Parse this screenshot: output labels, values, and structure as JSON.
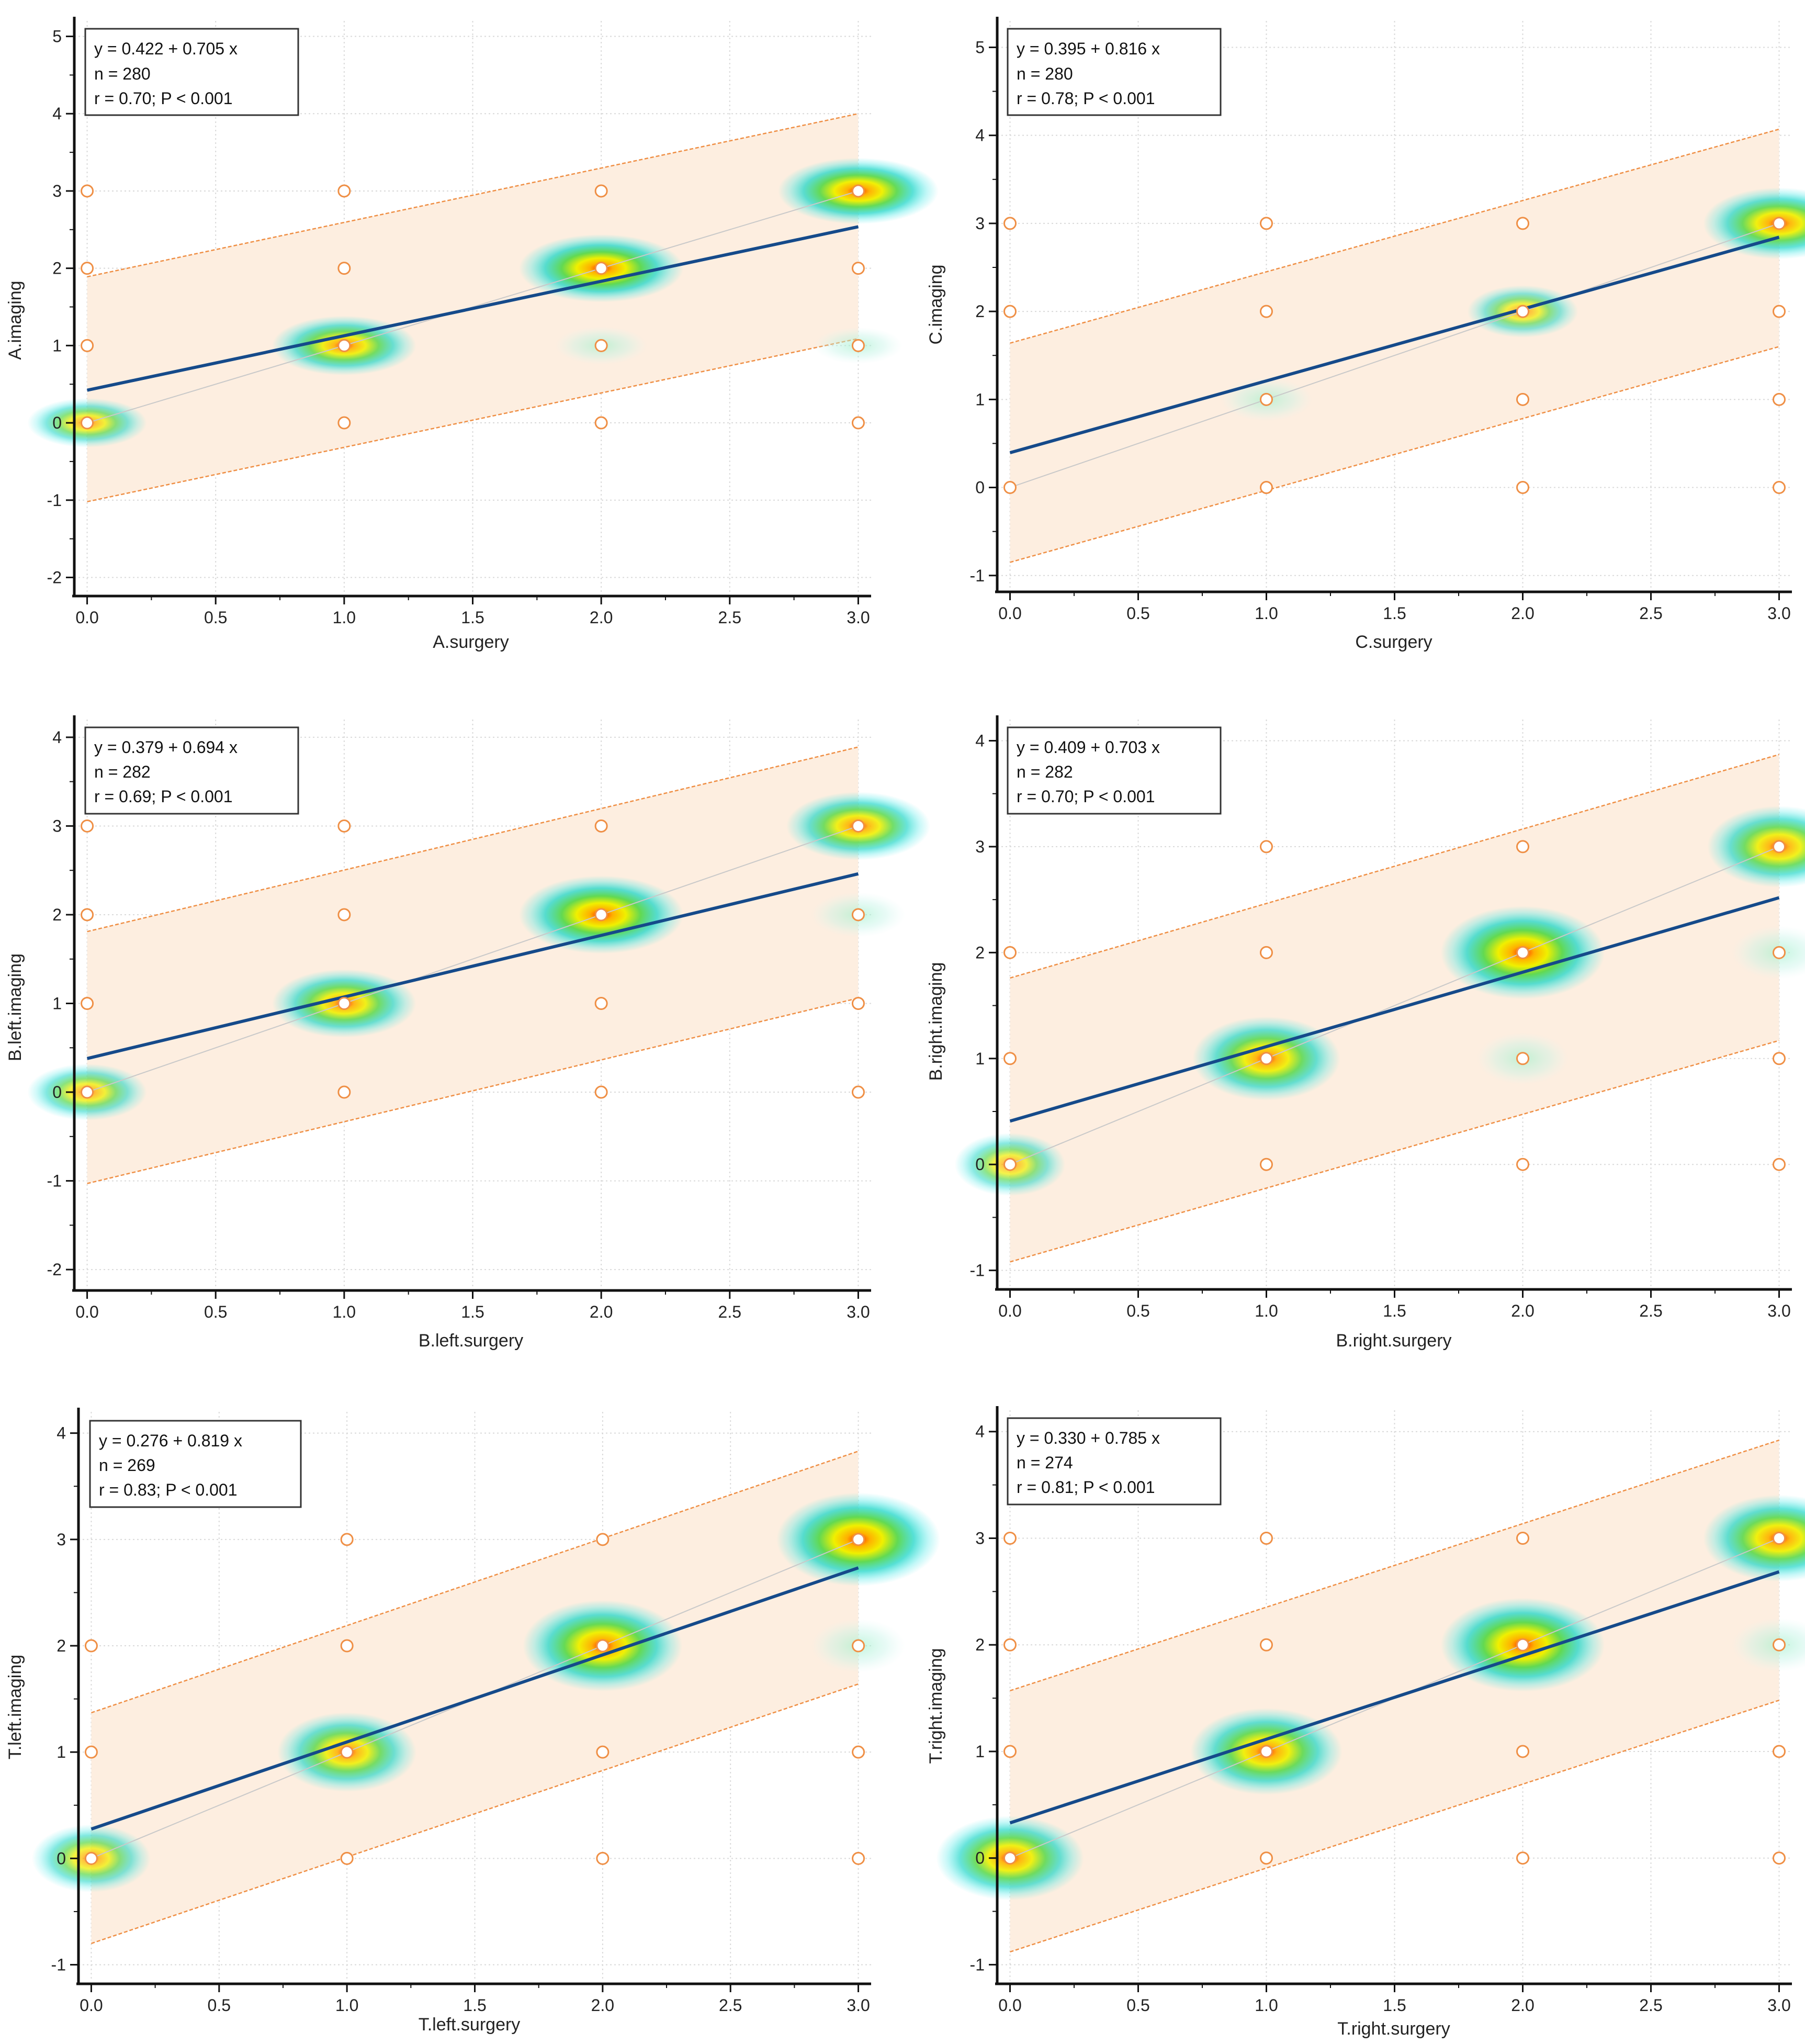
{
  "colors": {
    "band_fill": "#fdeee0",
    "band_edge": "#ef8f45",
    "regression": "#154a8a",
    "identity": "#c9c9c9",
    "grid": "#d9d9d9",
    "marker": "#ef8f45",
    "axis": "#111111"
  },
  "chart_data": [
    {
      "type": "scatter",
      "title": "",
      "xlabel": "A.surgery",
      "ylabel": "A.imaging",
      "xlim": [
        -0.05,
        3.05
      ],
      "ylim": [
        -2.2,
        5.2
      ],
      "xticks": [
        "0.0",
        "0.5",
        "1.0",
        "1.5",
        "2.0",
        "2.5",
        "3.0"
      ],
      "yticks": [
        "-2",
        "-1",
        "0",
        "1",
        "2",
        "3",
        "4",
        "5"
      ],
      "stats": [
        "y = 0.422 + 0.705 x",
        "n = 280",
        "r = 0.70; P < 0.001"
      ],
      "intercept": 0.422,
      "slope": 0.705,
      "band_lower": [
        -1.02,
        1.09
      ],
      "band_upper": [
        1.89,
        4.0
      ],
      "points": [
        [
          0,
          0
        ],
        [
          0,
          1
        ],
        [
          0,
          2
        ],
        [
          0,
          3
        ],
        [
          1,
          0
        ],
        [
          1,
          1
        ],
        [
          1,
          2
        ],
        [
          1,
          3
        ],
        [
          2,
          0
        ],
        [
          2,
          1
        ],
        [
          2,
          2
        ],
        [
          2,
          3
        ],
        [
          3,
          0
        ],
        [
          3,
          1
        ],
        [
          3,
          2
        ],
        [
          3,
          3
        ]
      ],
      "density": [
        [
          0,
          0,
          0.45
        ],
        [
          1,
          1,
          0.75
        ],
        [
          2,
          1,
          0.12
        ],
        [
          2,
          2,
          1.0
        ],
        [
          3,
          3,
          0.95
        ],
        [
          3,
          1,
          0.08
        ]
      ]
    },
    {
      "type": "scatter",
      "title": "",
      "xlabel": "C.surgery",
      "ylabel": "C.imaging",
      "xlim": [
        -0.05,
        3.05
      ],
      "ylim": [
        -1.15,
        5.3
      ],
      "xticks": [
        "0.0",
        "0.5",
        "1.0",
        "1.5",
        "2.0",
        "2.5",
        "3.0"
      ],
      "yticks": [
        "-1",
        "0",
        "1",
        "2",
        "3",
        "4",
        "5"
      ],
      "stats": [
        "y = 0.395 + 0.816 x",
        "n = 280",
        "r = 0.78; P < 0.001"
      ],
      "intercept": 0.395,
      "slope": 0.816,
      "band_lower": [
        -0.85,
        1.6
      ],
      "band_upper": [
        1.64,
        4.07
      ],
      "points": [
        [
          0,
          0
        ],
        [
          0,
          2
        ],
        [
          0,
          3
        ],
        [
          1,
          0
        ],
        [
          1,
          1
        ],
        [
          1,
          2
        ],
        [
          1,
          3
        ],
        [
          2,
          0
        ],
        [
          2,
          1
        ],
        [
          2,
          2
        ],
        [
          2,
          3
        ],
        [
          3,
          0
        ],
        [
          3,
          1
        ],
        [
          3,
          2
        ],
        [
          3,
          3
        ]
      ],
      "density": [
        [
          1,
          1,
          0.12
        ],
        [
          2,
          2,
          0.35
        ],
        [
          3,
          3,
          0.85
        ]
      ]
    },
    {
      "type": "scatter",
      "title": "",
      "xlabel": "B.left.surgery",
      "ylabel": "B.left.imaging",
      "xlim": [
        -0.05,
        3.05
      ],
      "ylim": [
        -2.2,
        4.2
      ],
      "xticks": [
        "0.0",
        "0.5",
        "1.0",
        "1.5",
        "2.0",
        "2.5",
        "3.0"
      ],
      "yticks": [
        "-2",
        "-1",
        "0",
        "1",
        "2",
        "3",
        "4"
      ],
      "stats": [
        "y = 0.379 + 0.694 x",
        "n = 282",
        "r = 0.69; P < 0.001"
      ],
      "intercept": 0.379,
      "slope": 0.694,
      "band_lower": [
        -1.03,
        1.06
      ],
      "band_upper": [
        1.81,
        3.89
      ],
      "points": [
        [
          0,
          0
        ],
        [
          0,
          1
        ],
        [
          0,
          2
        ],
        [
          0,
          3
        ],
        [
          1,
          0
        ],
        [
          1,
          1
        ],
        [
          1,
          2
        ],
        [
          1,
          3
        ],
        [
          2,
          0
        ],
        [
          2,
          1
        ],
        [
          2,
          2
        ],
        [
          2,
          3
        ],
        [
          3,
          0
        ],
        [
          3,
          1
        ],
        [
          3,
          2
        ],
        [
          3,
          3
        ]
      ],
      "density": [
        [
          0,
          0,
          0.45
        ],
        [
          1,
          1,
          0.75
        ],
        [
          2,
          2,
          1.0
        ],
        [
          3,
          3,
          0.75
        ],
        [
          3,
          2,
          0.15
        ]
      ]
    },
    {
      "type": "scatter",
      "title": "",
      "xlabel": "B.right.surgery",
      "ylabel": "B.right.imaging",
      "xlim": [
        -0.05,
        3.05
      ],
      "ylim": [
        -1.15,
        4.2
      ],
      "xticks": [
        "0.0",
        "0.5",
        "1.0",
        "1.5",
        "2.0",
        "2.5",
        "3.0"
      ],
      "yticks": [
        "-1",
        "0",
        "1",
        "2",
        "3",
        "4"
      ],
      "stats": [
        "y = 0.409 + 0.703 x",
        "n = 282",
        "r = 0.70; P < 0.001"
      ],
      "intercept": 0.409,
      "slope": 0.703,
      "band_lower": [
        -0.92,
        1.17
      ],
      "band_upper": [
        1.76,
        3.87
      ],
      "points": [
        [
          0,
          0
        ],
        [
          0,
          1
        ],
        [
          0,
          2
        ],
        [
          1,
          0
        ],
        [
          1,
          1
        ],
        [
          1,
          2
        ],
        [
          1,
          3
        ],
        [
          2,
          0
        ],
        [
          2,
          1
        ],
        [
          2,
          2
        ],
        [
          2,
          3
        ],
        [
          3,
          0
        ],
        [
          3,
          1
        ],
        [
          3,
          2
        ],
        [
          3,
          3
        ]
      ],
      "density": [
        [
          0,
          0,
          0.35
        ],
        [
          1,
          1,
          0.8
        ],
        [
          2,
          1,
          0.12
        ],
        [
          2,
          2,
          1.0
        ],
        [
          3,
          3,
          0.75
        ],
        [
          3,
          2,
          0.15
        ]
      ]
    },
    {
      "type": "scatter",
      "title": "",
      "xlabel": "T.left.surgery",
      "ylabel": "T.left.imaging",
      "xlim": [
        -0.05,
        3.05
      ],
      "ylim": [
        -1.15,
        4.2
      ],
      "xticks": [
        "0.0",
        "0.5",
        "1.0",
        "1.5",
        "2.0",
        "2.5",
        "3.0"
      ],
      "yticks": [
        "-1",
        "0",
        "1",
        "2",
        "3",
        "4"
      ],
      "stats": [
        "y = 0.276 + 0.819 x",
        "n = 269",
        "r = 0.83; P < 0.001"
      ],
      "intercept": 0.276,
      "slope": 0.819,
      "band_lower": [
        -0.8,
        1.64
      ],
      "band_upper": [
        1.37,
        3.83
      ],
      "points": [
        [
          0,
          0
        ],
        [
          0,
          1
        ],
        [
          0,
          2
        ],
        [
          1,
          0
        ],
        [
          1,
          1
        ],
        [
          1,
          2
        ],
        [
          1,
          3
        ],
        [
          2,
          0
        ],
        [
          2,
          1
        ],
        [
          2,
          2
        ],
        [
          2,
          3
        ],
        [
          3,
          0
        ],
        [
          3,
          1
        ],
        [
          3,
          2
        ],
        [
          3,
          3
        ]
      ],
      "density": [
        [
          0,
          0,
          0.45
        ],
        [
          1,
          1,
          0.7
        ],
        [
          2,
          2,
          0.95
        ],
        [
          3,
          3,
          1.0
        ],
        [
          3,
          2,
          0.15
        ]
      ]
    },
    {
      "type": "scatter",
      "title": "",
      "xlabel": "T.right.surgery",
      "ylabel": "T.right.imaging",
      "xlim": [
        -0.05,
        3.05
      ],
      "ylim": [
        -1.15,
        4.2
      ],
      "xticks": [
        "0.0",
        "0.5",
        "1.0",
        "1.5",
        "2.0",
        "2.5",
        "3.0"
      ],
      "yticks": [
        "-1",
        "0",
        "1",
        "2",
        "3",
        "4"
      ],
      "stats": [
        "y = 0.330 + 0.785 x",
        "n = 274",
        "r = 0.81; P < 0.001"
      ],
      "intercept": 0.33,
      "slope": 0.785,
      "band_lower": [
        -0.88,
        1.48
      ],
      "band_upper": [
        1.57,
        3.92
      ],
      "points": [
        [
          0,
          0
        ],
        [
          0,
          1
        ],
        [
          0,
          2
        ],
        [
          0,
          3
        ],
        [
          1,
          0
        ],
        [
          1,
          1
        ],
        [
          1,
          2
        ],
        [
          1,
          3
        ],
        [
          2,
          0
        ],
        [
          2,
          1
        ],
        [
          2,
          2
        ],
        [
          2,
          3
        ],
        [
          3,
          0
        ],
        [
          3,
          1
        ],
        [
          3,
          2
        ],
        [
          3,
          3
        ]
      ],
      "density": [
        [
          0,
          0,
          0.8
        ],
        [
          1,
          1,
          0.85
        ],
        [
          2,
          2,
          1.0
        ],
        [
          3,
          3,
          0.85
        ],
        [
          3,
          2,
          0.15
        ]
      ]
    }
  ]
}
